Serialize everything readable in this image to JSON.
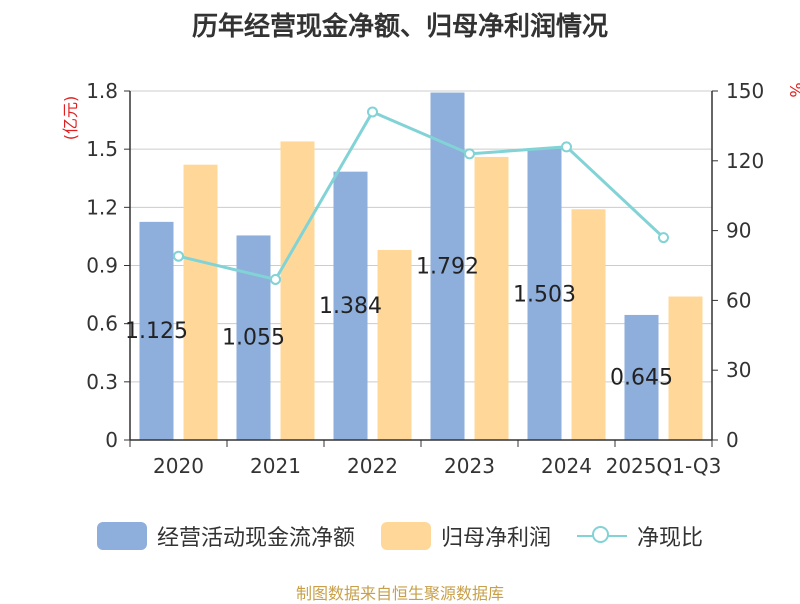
{
  "title": "历年经营现金净额、归母净利润情况",
  "source": "制图数据来自恒生聚源数据库",
  "colors": {
    "operating_cash": "#8eaedb",
    "net_profit": "#ffd899",
    "ratio_line": "#82d3d6",
    "axis": "#333333",
    "grid": "#cccccc",
    "unit_red": "#e02020"
  },
  "chart_data": {
    "type": "bar",
    "categories": [
      "2020",
      "2021",
      "2022",
      "2023",
      "2024",
      "2025Q1-Q3"
    ],
    "series": [
      {
        "name": "经营活动现金流净额",
        "kind": "bar",
        "axis": "left",
        "values": [
          1.125,
          1.055,
          1.384,
          1.792,
          1.503,
          0.645
        ],
        "labels": [
          "1.125",
          "1.055",
          "1.384",
          "1.792",
          "1.503",
          "0.645"
        ]
      },
      {
        "name": "归母净利润",
        "kind": "bar",
        "axis": "left",
        "values": [
          1.42,
          1.54,
          0.98,
          1.46,
          1.19,
          0.74
        ]
      },
      {
        "name": "净现比",
        "kind": "line",
        "axis": "right",
        "values": [
          79,
          69,
          141,
          123,
          126,
          87
        ]
      }
    ],
    "left_axis": {
      "unit": "(亿元)",
      "ylim": [
        0,
        1.8
      ],
      "ticks": [
        "0",
        "0.3",
        "0.6",
        "0.9",
        "1.2",
        "1.5",
        "1.8"
      ]
    },
    "right_axis": {
      "unit": "%",
      "ylim": [
        0,
        150
      ],
      "ticks": [
        "0",
        "30",
        "60",
        "90",
        "120",
        "150"
      ]
    },
    "grid": true,
    "legend_position": "bottom"
  }
}
